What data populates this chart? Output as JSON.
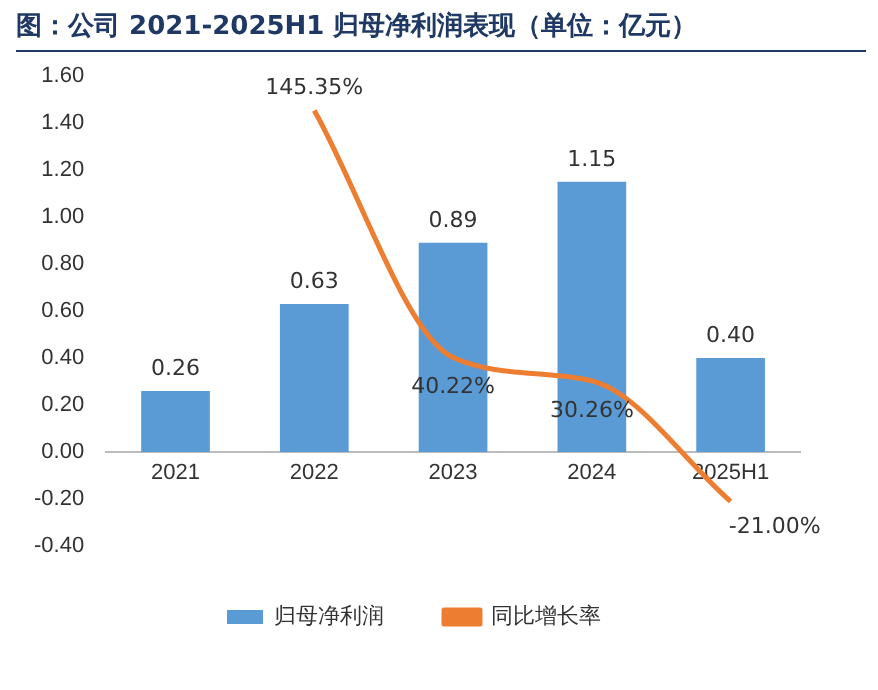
{
  "chart_data": {
    "type": "bar",
    "title": "图：公司 2021-2025H1 归母净利润表现（单位：亿元）",
    "categories": [
      "2021",
      "2022",
      "2023",
      "2024",
      "2025H1"
    ],
    "series": [
      {
        "name": "归母净利润",
        "color": "#5b9bd5",
        "values": [
          0.26,
          0.63,
          0.89,
          1.15,
          0.4
        ],
        "value_labels": [
          "0.26",
          "0.63",
          "0.89",
          "1.15",
          "0.40"
        ]
      },
      {
        "name": "同比增长率",
        "type": "line",
        "axis": "y2",
        "color": "#ed7d31",
        "values": [
          null,
          145.35,
          40.22,
          30.26,
          -21.0
        ],
        "value_labels": [
          null,
          "145.35%",
          "40.22%",
          "30.26%",
          "-21.00%"
        ]
      }
    ],
    "ylim": [
      -0.4,
      1.6
    ],
    "yticks": [
      {
        "value": -0.4,
        "label": "-0.40"
      },
      {
        "value": -0.2,
        "label": "-0.20"
      },
      {
        "value": 0,
        "label": "0.00"
      },
      {
        "value": 0.2,
        "label": "0.20"
      },
      {
        "value": 0.4,
        "label": "0.40"
      },
      {
        "value": 0.6,
        "label": "0.60"
      },
      {
        "value": 0.8,
        "label": "0.80"
      },
      {
        "value": 1.0,
        "label": "1.00"
      },
      {
        "value": 1.2,
        "label": "1.20"
      },
      {
        "value": 1.4,
        "label": "1.40"
      },
      {
        "value": 1.6,
        "label": "1.60"
      }
    ],
    "grid": false,
    "legend": "bottom",
    "marker": "none",
    "line_style": "solid"
  }
}
